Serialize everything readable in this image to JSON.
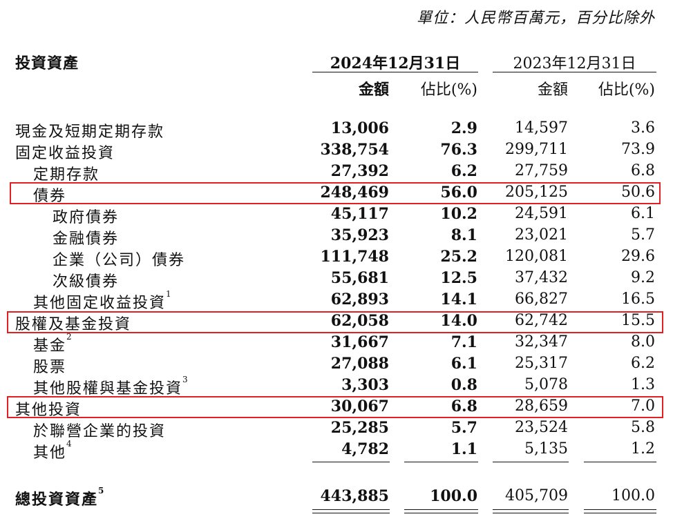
{
  "unit_note": "單位：人民幣百萬元，百分比除外",
  "header": {
    "title": "投資資產",
    "period_2024": "2024年12月31日",
    "period_2023": "2023年12月31日",
    "amount_2024": "金額",
    "ratio_2024": "佔比(%)",
    "amount_2023": "金額",
    "ratio_2023": "佔比(%)"
  },
  "rows": [
    {
      "label": "現金及短期定期存款",
      "sup": "",
      "v2024": "13,006",
      "r2024": "2.9",
      "v2023": "14,597",
      "r2023": "3.6"
    },
    {
      "label": "固定收益投資",
      "sup": "",
      "v2024": "338,754",
      "r2024": "76.3",
      "v2023": "299,711",
      "r2023": "73.9"
    },
    {
      "label": "定期存款",
      "sup": "",
      "v2024": "27,392",
      "r2024": "6.2",
      "v2023": "27,759",
      "r2023": "6.8"
    },
    {
      "label": "債券",
      "sup": "",
      "v2024": "248,469",
      "r2024": "56.0",
      "v2023": "205,125",
      "r2023": "50.6"
    },
    {
      "label": "政府債券",
      "sup": "",
      "v2024": "45,117",
      "r2024": "10.2",
      "v2023": "24,591",
      "r2023": "6.1"
    },
    {
      "label": "金融債券",
      "sup": "",
      "v2024": "35,923",
      "r2024": "8.1",
      "v2023": "23,021",
      "r2023": "5.7"
    },
    {
      "label": "企業（公司）債券",
      "sup": "",
      "v2024": "111,748",
      "r2024": "25.2",
      "v2023": "120,081",
      "r2023": "29.6"
    },
    {
      "label": "次級債券",
      "sup": "",
      "v2024": "55,681",
      "r2024": "12.5",
      "v2023": "37,432",
      "r2023": "9.2"
    },
    {
      "label": "其他固定收益投資",
      "sup": "1",
      "v2024": "62,893",
      "r2024": "14.1",
      "v2023": "66,827",
      "r2023": "16.5"
    },
    {
      "label": "股權及基金投資",
      "sup": "",
      "v2024": "62,058",
      "r2024": "14.0",
      "v2023": "62,742",
      "r2023": "15.5"
    },
    {
      "label": "基金",
      "sup": "2",
      "v2024": "31,667",
      "r2024": "7.1",
      "v2023": "32,347",
      "r2023": "8.0"
    },
    {
      "label": "股票",
      "sup": "",
      "v2024": "27,088",
      "r2024": "6.1",
      "v2023": "25,317",
      "r2023": "6.2"
    },
    {
      "label": "其他股權與基金投資",
      "sup": "3",
      "v2024": "3,303",
      "r2024": "0.8",
      "v2023": "5,078",
      "r2023": "1.3"
    },
    {
      "label": "其他投資",
      "sup": "",
      "v2024": "30,067",
      "r2024": "6.8",
      "v2023": "28,659",
      "r2023": "7.0"
    },
    {
      "label": "於聯營企業的投資",
      "sup": "",
      "v2024": "25,285",
      "r2024": "5.7",
      "v2023": "23,524",
      "r2023": "5.8"
    },
    {
      "label": "其他",
      "sup": "4",
      "v2024": "4,782",
      "r2024": "1.1",
      "v2023": "5,135",
      "r2023": "1.2"
    }
  ],
  "total": {
    "label": "總投資資產",
    "sup": "5",
    "v2024": "443,885",
    "r2024": "100.0",
    "v2023": "405,709",
    "r2023": "100.0"
  },
  "highlight_color": "#e02020"
}
